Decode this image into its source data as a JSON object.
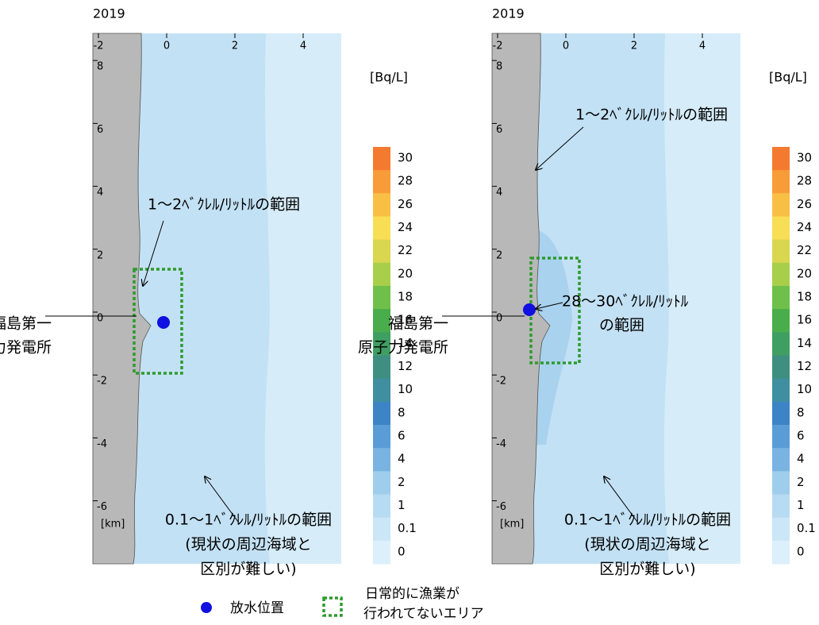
{
  "panels": [
    {
      "year": "2019",
      "xticks": [
        -2,
        0,
        2,
        4
      ],
      "yticks": [
        8,
        6,
        4,
        2,
        0,
        -2,
        -4,
        -6
      ],
      "unit": "[km]",
      "plant": [
        "福島第一",
        "原子力発電所"
      ],
      "range_label": [
        "1～2ﾍﾞｸﾚﾙ/ﾘｯﾄﾙの範囲"
      ],
      "background_label": [
        "0.1～1ﾍﾞｸﾚﾙ/ﾘｯﾄﾙの範囲",
        "(現状の周辺海域と",
        "区別が難しい)"
      ]
    },
    {
      "year": "2019",
      "xticks": [
        -2,
        0,
        2,
        4
      ],
      "yticks": [
        8,
        6,
        4,
        2,
        0,
        -2,
        -4,
        -6
      ],
      "unit": "[km]",
      "plant": [
        "福島第一",
        "原子力発電所"
      ],
      "range_label": [
        "1～2ﾍﾞｸﾚﾙ/ﾘｯﾄﾙの範囲"
      ],
      "peak_label": [
        "28～30ﾍﾞｸﾚﾙ/ﾘｯﾄﾙ",
        "の範囲"
      ],
      "background_label": [
        "0.1～1ﾍﾞｸﾚﾙ/ﾘｯﾄﾙの範囲",
        "(現状の周辺海域と",
        "区別が難しい)"
      ]
    }
  ],
  "colorbar": {
    "unit": "[Bq/L]",
    "levels": [
      30,
      28,
      26,
      24,
      22,
      20,
      18,
      16,
      14,
      12,
      10,
      8,
      6,
      4,
      2,
      1,
      0.1,
      0
    ],
    "colors": [
      "#f47a30",
      "#f89c3a",
      "#f9bf45",
      "#f8de55",
      "#d9d650",
      "#a8cf4a",
      "#6fc04a",
      "#4aad4b",
      "#3f9f62",
      "#3f8f80",
      "#3f8fa0",
      "#3d84c7",
      "#5a9dd6",
      "#79b3e1",
      "#9fcdec",
      "#b7dbf2",
      "#cbe6f7",
      "#dcf0fb"
    ]
  },
  "legend": {
    "outfall": "放水位置",
    "area": [
      "日常的に漁業が",
      "行われてないエリア"
    ]
  }
}
